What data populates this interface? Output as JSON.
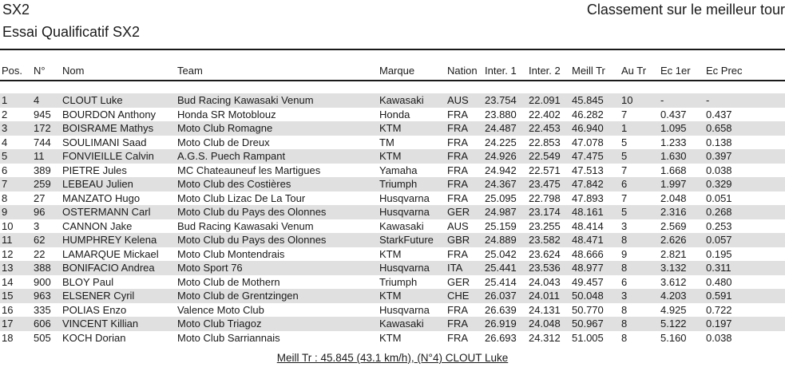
{
  "colors": {
    "row_stripe": "#e0e0e0",
    "text": "#1a1a1a"
  },
  "header": {
    "category": "SX2",
    "ranking_label": "Classement sur le meilleur tour",
    "session": "Essai Qualificatif SX2"
  },
  "table": {
    "columns": [
      {
        "id": "pos",
        "label": "Pos."
      },
      {
        "id": "num",
        "label": "N°"
      },
      {
        "id": "name",
        "label": "Nom"
      },
      {
        "id": "team",
        "label": "Team"
      },
      {
        "id": "brand",
        "label": "Marque"
      },
      {
        "id": "nation",
        "label": "Nation"
      },
      {
        "id": "inter1",
        "label": "Inter. 1"
      },
      {
        "id": "inter2",
        "label": "Inter. 2"
      },
      {
        "id": "best_lap",
        "label": "Meill Tr"
      },
      {
        "id": "lap_no",
        "label": "Au Tr"
      },
      {
        "id": "gap_first",
        "label": "Ec 1er"
      },
      {
        "id": "gap_prev",
        "label": "Ec Prec"
      }
    ],
    "rows": [
      {
        "pos": "1",
        "num": "4",
        "name": "CLOUT Luke",
        "team": "Bud Racing Kawasaki Venum",
        "brand": "Kawasaki",
        "nation": "AUS",
        "inter1": "23.754",
        "inter2": "22.091",
        "best_lap": "45.845",
        "lap_no": "10",
        "gap_first": "-",
        "gap_prev": "-"
      },
      {
        "pos": "2",
        "num": "945",
        "name": "BOURDON Anthony",
        "team": "Honda SR Motoblouz",
        "brand": "Honda",
        "nation": "FRA",
        "inter1": "23.880",
        "inter2": "22.402",
        "best_lap": "46.282",
        "lap_no": "7",
        "gap_first": "0.437",
        "gap_prev": "0.437"
      },
      {
        "pos": "3",
        "num": "172",
        "name": "BOISRAME Mathys",
        "team": "Moto Club Romagne",
        "brand": "KTM",
        "nation": "FRA",
        "inter1": "24.487",
        "inter2": "22.453",
        "best_lap": "46.940",
        "lap_no": "1",
        "gap_first": "1.095",
        "gap_prev": "0.658"
      },
      {
        "pos": "4",
        "num": "744",
        "name": "SOULIMANI Saad",
        "team": "Moto Club de Dreux",
        "brand": "TM",
        "nation": "FRA",
        "inter1": "24.225",
        "inter2": "22.853",
        "best_lap": "47.078",
        "lap_no": "5",
        "gap_first": "1.233",
        "gap_prev": "0.138"
      },
      {
        "pos": "5",
        "num": "11",
        "name": "FONVIEILLE Calvin",
        "team": "A.G.S. Puech Rampant",
        "brand": "KTM",
        "nation": "FRA",
        "inter1": "24.926",
        "inter2": "22.549",
        "best_lap": "47.475",
        "lap_no": "5",
        "gap_first": "1.630",
        "gap_prev": "0.397"
      },
      {
        "pos": "6",
        "num": "389",
        "name": "PIETRE Jules",
        "team": "MC Chateauneuf les Martigues",
        "brand": "Yamaha",
        "nation": "FRA",
        "inter1": "24.942",
        "inter2": "22.571",
        "best_lap": "47.513",
        "lap_no": "7",
        "gap_first": "1.668",
        "gap_prev": "0.038"
      },
      {
        "pos": "7",
        "num": "259",
        "name": "LEBEAU Julien",
        "team": "Moto Club des Costières",
        "brand": "Triumph",
        "nation": "FRA",
        "inter1": "24.367",
        "inter2": "23.475",
        "best_lap": "47.842",
        "lap_no": "6",
        "gap_first": "1.997",
        "gap_prev": "0.329"
      },
      {
        "pos": "8",
        "num": "27",
        "name": "MANZATO Hugo",
        "team": "Moto Club Lizac De La Tour",
        "brand": "Husqvarna",
        "nation": "FRA",
        "inter1": "25.095",
        "inter2": "22.798",
        "best_lap": "47.893",
        "lap_no": "7",
        "gap_first": "2.048",
        "gap_prev": "0.051"
      },
      {
        "pos": "9",
        "num": "96",
        "name": "OSTERMANN Carl",
        "team": "Moto Club du Pays des Olonnes",
        "brand": "Husqvarna",
        "nation": "GER",
        "inter1": "24.987",
        "inter2": "23.174",
        "best_lap": "48.161",
        "lap_no": "5",
        "gap_first": "2.316",
        "gap_prev": "0.268"
      },
      {
        "pos": "10",
        "num": "3",
        "name": "CANNON Jake",
        "team": "Bud Racing Kawasaki Venum",
        "brand": "Kawasaki",
        "nation": "AUS",
        "inter1": "25.159",
        "inter2": "23.255",
        "best_lap": "48.414",
        "lap_no": "3",
        "gap_first": "2.569",
        "gap_prev": "0.253"
      },
      {
        "pos": "11",
        "num": "62",
        "name": "HUMPHREY Kelena",
        "team": "Moto Club du Pays des Olonnes",
        "brand": "StarkFuture",
        "nation": "GBR",
        "inter1": "24.889",
        "inter2": "23.582",
        "best_lap": "48.471",
        "lap_no": "8",
        "gap_first": "2.626",
        "gap_prev": "0.057"
      },
      {
        "pos": "12",
        "num": "22",
        "name": "LAMARQUE Mickael",
        "team": "Moto Club Montendrais",
        "brand": "KTM",
        "nation": "FRA",
        "inter1": "25.042",
        "inter2": "23.624",
        "best_lap": "48.666",
        "lap_no": "9",
        "gap_first": "2.821",
        "gap_prev": "0.195"
      },
      {
        "pos": "13",
        "num": "388",
        "name": "BONIFACIO Andrea",
        "team": "Moto Sport 76",
        "brand": "Husqvarna",
        "nation": "ITA",
        "inter1": "25.441",
        "inter2": "23.536",
        "best_lap": "48.977",
        "lap_no": "8",
        "gap_first": "3.132",
        "gap_prev": "0.311"
      },
      {
        "pos": "14",
        "num": "900",
        "name": "BLOY Paul",
        "team": "Moto Club de Mothern",
        "brand": "Triumph",
        "nation": "GER",
        "inter1": "25.414",
        "inter2": "24.043",
        "best_lap": "49.457",
        "lap_no": "6",
        "gap_first": "3.612",
        "gap_prev": "0.480"
      },
      {
        "pos": "15",
        "num": "963",
        "name": "ELSENER Cyril",
        "team": "Moto Club de Grentzingen",
        "brand": "KTM",
        "nation": "CHE",
        "inter1": "26.037",
        "inter2": "24.011",
        "best_lap": "50.048",
        "lap_no": "3",
        "gap_first": "4.203",
        "gap_prev": "0.591"
      },
      {
        "pos": "16",
        "num": "335",
        "name": "POLIAS Enzo",
        "team": "Valence Moto Club",
        "brand": "Husqvarna",
        "nation": "FRA",
        "inter1": "26.639",
        "inter2": "24.131",
        "best_lap": "50.770",
        "lap_no": "8",
        "gap_first": "4.925",
        "gap_prev": "0.722"
      },
      {
        "pos": "17",
        "num": "606",
        "name": "VINCENT Killian",
        "team": "Moto Club Triagoz",
        "brand": "Kawasaki",
        "nation": "FRA",
        "inter1": "26.919",
        "inter2": "24.048",
        "best_lap": "50.967",
        "lap_no": "8",
        "gap_first": "5.122",
        "gap_prev": "0.197"
      },
      {
        "pos": "18",
        "num": "505",
        "name": "KOCH Dorian",
        "team": "Moto Club Sarriannais",
        "brand": "KTM",
        "nation": "FRA",
        "inter1": "26.693",
        "inter2": "24.312",
        "best_lap": "51.005",
        "lap_no": "8",
        "gap_first": "5.160",
        "gap_prev": "0.038"
      }
    ]
  },
  "footer": {
    "best_lap_summary": "Meill Tr : 45.845 (43.1 km/h), (N°4) CLOUT Luke"
  }
}
